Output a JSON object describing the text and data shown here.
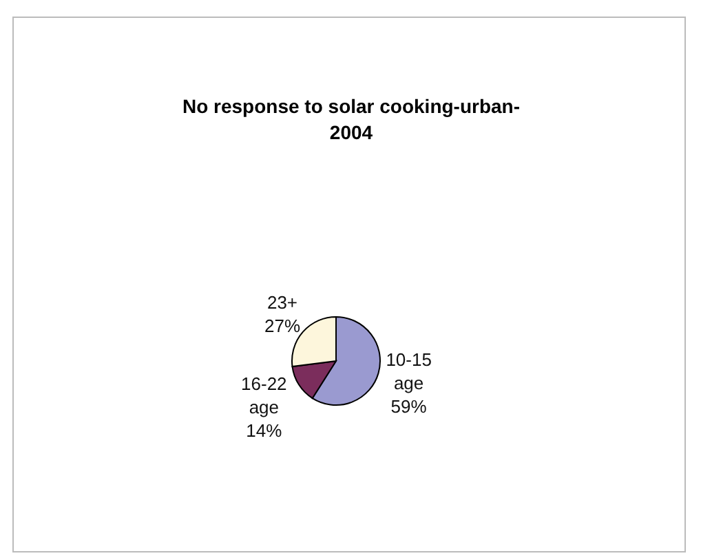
{
  "chart_data": {
    "type": "pie",
    "title": "No response to solar cooking-urban-2004",
    "categories": [
      "10-15 age",
      "16-22 age",
      "23+"
    ],
    "values": [
      59,
      14,
      27
    ],
    "value_labels": [
      "59%",
      "14%",
      "27%"
    ],
    "colors": [
      "#9a9ad0",
      "#7b2d5c",
      "#fdf6dc"
    ]
  }
}
